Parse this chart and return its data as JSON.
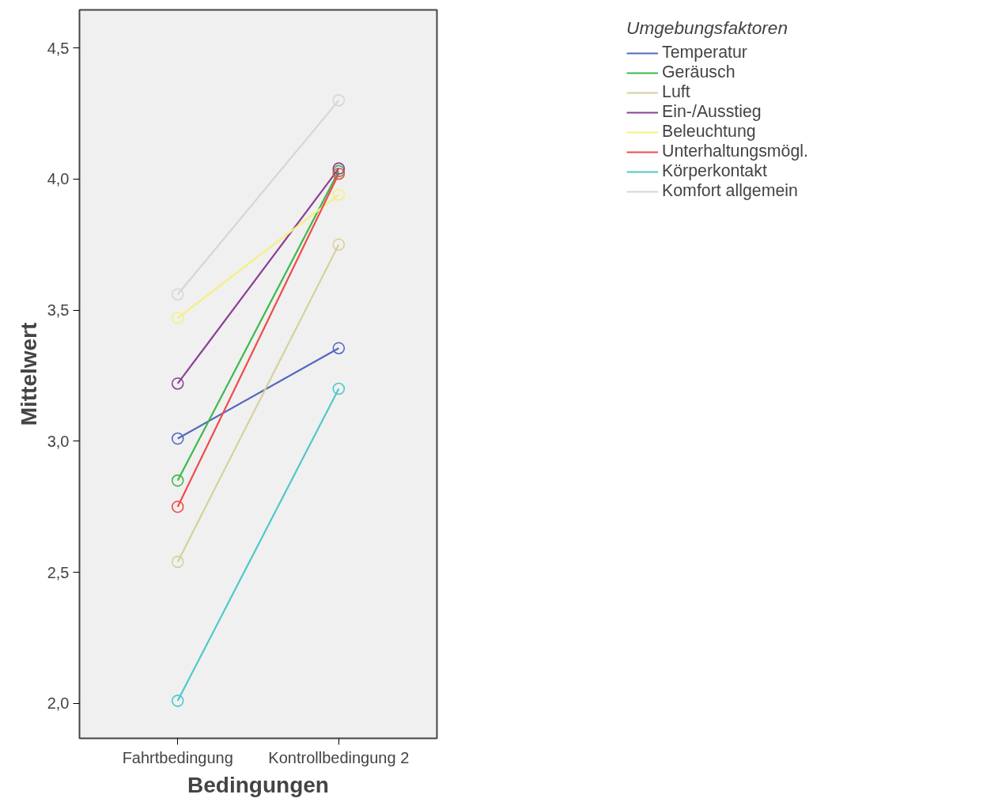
{
  "chart_data": {
    "type": "line",
    "xlabel": "Bedingungen",
    "ylabel": "Mittelwert",
    "legend_title": "Umgebungsfaktoren",
    "categories": [
      "Fahrtbedingung",
      "Kontrollbedingung 2"
    ],
    "series": [
      {
        "name": "Temperatur",
        "color": "#5468c0",
        "values": [
          3.01,
          3.355
        ]
      },
      {
        "name": "Geräusch",
        "color": "#3cb94a",
        "values": [
          2.85,
          4.03
        ]
      },
      {
        "name": "Luft",
        "color": "#d6d09c",
        "values": [
          2.54,
          3.75
        ]
      },
      {
        "name": "Ein-/Ausstieg",
        "color": "#8c3f96",
        "values": [
          3.22,
          4.04
        ]
      },
      {
        "name": "Beleuchtung",
        "color": "#f6f07c",
        "values": [
          3.47,
          3.94
        ]
      },
      {
        "name": "Unterhaltungsmögl.",
        "color": "#f04a4a",
        "values": [
          2.75,
          4.02
        ]
      },
      {
        "name": "Körperkontakt",
        "color": "#4ec8c8",
        "values": [
          2.01,
          3.2
        ]
      },
      {
        "name": "Komfort allgemein",
        "color": "#d6d6d6",
        "values": [
          3.56,
          4.3
        ]
      }
    ],
    "ylim": [
      1.867,
      4.645
    ],
    "yticks": [
      {
        "value": 2.0,
        "label": "2,0"
      },
      {
        "value": 2.5,
        "label": "2,5"
      },
      {
        "value": 3.0,
        "label": "3,0"
      },
      {
        "value": 3.5,
        "label": "3,5"
      },
      {
        "value": 4.0,
        "label": "4,0"
      },
      {
        "value": 4.5,
        "label": "4,5"
      }
    ],
    "grid": false,
    "legend": "right",
    "marker": "circle",
    "line_style": "solid"
  }
}
